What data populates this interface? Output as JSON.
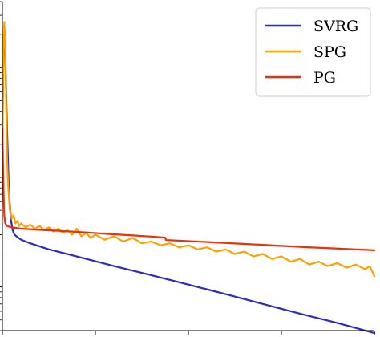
{
  "chart_data": {
    "type": "line",
    "title": "",
    "xlabel": "",
    "ylabel": "",
    "x_range": [
      0,
      400
    ],
    "x_ticks": [
      0,
      100,
      200,
      300,
      400
    ],
    "y_scale": "log",
    "y_range": [
      0.004,
      4
    ],
    "y_ticks_major": [
      0.01,
      0.1,
      1
    ],
    "grid": false,
    "legend": {
      "placement": "top-right",
      "entries": [
        {
          "label": "SVRG",
          "color": "#2b2bc2"
        },
        {
          "label": "SPG",
          "color": "#ffa000"
        },
        {
          "label": "PG",
          "color": "#e8320a"
        }
      ]
    },
    "series": [
      {
        "name": "SVRG",
        "color": "#2b2bc2",
        "x": [
          0,
          1,
          2,
          3,
          5,
          7,
          9,
          11,
          13,
          15,
          20,
          30,
          50,
          80,
          120,
          160,
          200,
          240,
          280,
          320,
          360,
          400
        ],
        "y": [
          0.18,
          1.2,
          2.4,
          1.4,
          0.28,
          0.075,
          0.042,
          0.033,
          0.03,
          0.029,
          0.027,
          0.025,
          0.022,
          0.019,
          0.0155,
          0.0128,
          0.0105,
          0.0086,
          0.007,
          0.0057,
          0.0047,
          0.0038
        ]
      },
      {
        "name": "SPG",
        "color": "#ffa000",
        "x": [
          0,
          1,
          2,
          3,
          4,
          5,
          6,
          7,
          8,
          9,
          10,
          12,
          14,
          16,
          18,
          20,
          25,
          30,
          35,
          40,
          45,
          50,
          55,
          60,
          65,
          70,
          75,
          80,
          85,
          90,
          95,
          100,
          110,
          120,
          130,
          140,
          150,
          160,
          170,
          180,
          190,
          200,
          210,
          220,
          230,
          240,
          250,
          260,
          270,
          280,
          290,
          300,
          310,
          320,
          330,
          340,
          350,
          360,
          370,
          380,
          390,
          395,
          400
        ],
        "y": [
          0.2,
          1.5,
          2.6,
          1.5,
          0.5,
          0.15,
          0.09,
          0.065,
          0.05,
          0.048,
          0.042,
          0.045,
          0.038,
          0.04,
          0.036,
          0.038,
          0.035,
          0.037,
          0.034,
          0.036,
          0.033,
          0.035,
          0.032,
          0.034,
          0.031,
          0.033,
          0.03,
          0.034,
          0.029,
          0.031,
          0.028,
          0.03,
          0.027,
          0.029,
          0.026,
          0.028,
          0.025,
          0.026,
          0.024,
          0.025,
          0.023,
          0.024,
          0.022,
          0.023,
          0.021,
          0.022,
          0.02,
          0.021,
          0.019,
          0.02,
          0.018,
          0.019,
          0.017,
          0.018,
          0.016,
          0.017,
          0.0155,
          0.0165,
          0.015,
          0.016,
          0.0145,
          0.0155,
          0.0125
        ]
      },
      {
        "name": "PG",
        "color": "#e8320a",
        "x": [
          0,
          1,
          2,
          3,
          4,
          5,
          7,
          10,
          20,
          40,
          60,
          80,
          100,
          120,
          140,
          160,
          175,
          176,
          200,
          240,
          280,
          320,
          360,
          400
        ],
        "y": [
          0.28,
          0.09,
          0.045,
          0.038,
          0.037,
          0.036,
          0.0355,
          0.035,
          0.034,
          0.0332,
          0.0325,
          0.0318,
          0.031,
          0.0302,
          0.0295,
          0.0288,
          0.0282,
          0.0268,
          0.0262,
          0.0252,
          0.0242,
          0.0232,
          0.0224,
          0.0216
        ]
      }
    ]
  }
}
